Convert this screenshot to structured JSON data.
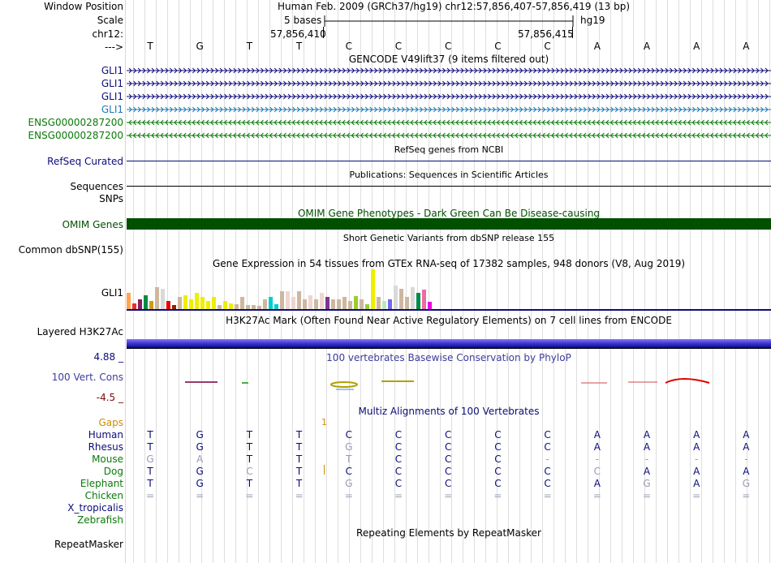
{
  "header": {
    "window_position_label": "Window Position",
    "window_position_value": "Human Feb. 2009 (GRCh37/hg19)   chr12:57,856,407-57,856,419 (13 bp)",
    "scale_label": "Scale",
    "scale_value": "5 bases",
    "scale_assembly": "hg19",
    "chrom_label": "chr12:",
    "coord_left": "57,856,410",
    "coord_right": "57,856,415",
    "strand_label": "--->"
  },
  "reference_bases": [
    "T",
    "G",
    "T",
    "T",
    "C",
    "C",
    "C",
    "C",
    "C",
    "A",
    "A",
    "A",
    "A"
  ],
  "gencode": {
    "title": "GENCODE V49lift37 (9 items filtered out)",
    "rows": [
      {
        "label": "GLI1",
        "strand": "+",
        "color": "#0c0c78"
      },
      {
        "label": "GLI1",
        "strand": "+",
        "color": "#0c0c78"
      },
      {
        "label": "GLI1",
        "strand": "+",
        "color": "#0c0c78"
      },
      {
        "label": "GLI1",
        "strand": "+",
        "color": "#1e78b4"
      },
      {
        "label": "ENSG00000287200",
        "strand": "-",
        "color": "#0a7a0a"
      },
      {
        "label": "ENSG00000287200",
        "strand": "-",
        "color": "#0a7a0a"
      }
    ]
  },
  "refseq": {
    "title": "RefSeq genes from NCBI",
    "label": "RefSeq Curated",
    "color": "#0c0c78"
  },
  "publications": {
    "title": "Publications: Sequences in Scientific Articles",
    "label": "Sequences"
  },
  "snps_label": "SNPs",
  "omim": {
    "title": "OMIM Gene Phenotypes - Dark Green Can Be Disease-causing",
    "label": "OMIM Genes",
    "color": "#005000"
  },
  "dbsnp": {
    "title": "Short Genetic Variants from dbSNP release 155",
    "label": "Common dbSNP(155)"
  },
  "gtex": {
    "title": "Gene Expression in 54 tissues from GTEx RNA-seq of 17382 samples, 948 donors (V8, Aug 2019)",
    "label": "GLI1",
    "values": [
      0.4,
      0.15,
      0.25,
      0.35,
      0.2,
      0.55,
      0.5,
      0.2,
      0.1,
      0.3,
      0.35,
      0.25,
      0.4,
      0.3,
      0.2,
      0.3,
      0.1,
      0.2,
      0.15,
      0.12,
      0.3,
      0.1,
      0.1,
      0.08,
      0.25,
      0.3,
      0.12,
      0.45,
      0.45,
      0.3,
      0.45,
      0.25,
      0.35,
      0.25,
      0.4,
      0.3,
      0.25,
      0.25,
      0.3,
      0.2,
      0.32,
      0.25,
      0.12,
      1.0,
      0.3,
      0.2,
      0.25,
      0.6,
      0.5,
      0.3,
      0.55,
      0.4,
      0.48,
      0.18
    ],
    "colors": [
      "#ffa54f",
      "#ee2c2c",
      "#8b1c62",
      "#008b45",
      "#cd9b1d",
      "#cdb79e",
      "#d9d9d9",
      "#ee0000",
      "#8b2500",
      "#cdb79e",
      "#eeee00",
      "#eeee00",
      "#eeee00",
      "#eeee00",
      "#eeee00",
      "#eeee00",
      "#cdb79e",
      "#eeee00",
      "#eeee00",
      "#cdb79e",
      "#cdb79e",
      "#cdb79e",
      "#cdb79e",
      "#cdb79e",
      "#cdb79e",
      "#00cdcd",
      "#00cdcd",
      "#cdb79e",
      "#eed5d2",
      "#eed5d2",
      "#cdb79e",
      "#cdb79e",
      "#eed5d2",
      "#cdb79e",
      "#eed5d2",
      "#7a378b",
      "#cdb79e",
      "#cdb79e",
      "#cdb79e",
      "#cdb79e",
      "#9acd32",
      "#cdb79e",
      "#9acd32",
      "#eeee00",
      "#cdb79e",
      "#b4eeb4",
      "#7a67ee",
      "#d9d9d9",
      "#cdb79e",
      "#cdb79e",
      "#d9d9d9",
      "#008b45",
      "#ee6aa7",
      "#ee00ee"
    ]
  },
  "h3k27ac": {
    "title": "H3K27Ac Mark (Often Found Near Active Regulatory Elements) on 7 cell lines from ENCODE",
    "label": "Layered H3K27Ac"
  },
  "phylop": {
    "title": "100 vertebrates Basewise Conservation by PhyloP",
    "label": "100 Vert. Cons",
    "max_label": "4.88 _",
    "min_label": "-4.5 _"
  },
  "multiz": {
    "title": "Multiz Alignments of 100 Vertebrates",
    "gaps_label": "Gaps",
    "gaps_marker": "1",
    "species": [
      {
        "name": "Human",
        "color": "#0c0c78",
        "bases": [
          "T",
          "G",
          "T",
          "T",
          "C",
          "C",
          "C",
          "C",
          "C",
          "A",
          "A",
          "A",
          "A"
        ]
      },
      {
        "name": "Rhesus",
        "color": "#0c0c78",
        "bases": [
          "T",
          "G",
          "T",
          "T",
          "G",
          "C",
          "C",
          "C",
          "C",
          "A",
          "A",
          "A",
          "A"
        ]
      },
      {
        "name": "Mouse",
        "color": "#0a7a0a",
        "bases": [
          "G",
          "A",
          "T",
          "T",
          "T",
          "C",
          "C",
          "C",
          "-",
          "-",
          "-",
          "-",
          "-"
        ]
      },
      {
        "name": "Dog",
        "color": "#0a7a0a",
        "bases": [
          "T",
          "G",
          "C",
          "T",
          "C",
          "C",
          "C",
          "C",
          "C",
          "C",
          "A",
          "A",
          "A"
        ]
      },
      {
        "name": "Elephant",
        "color": "#0a7a0a",
        "bases": [
          "T",
          "G",
          "T",
          "T",
          "G",
          "C",
          "C",
          "C",
          "C",
          "A",
          "G",
          "A",
          "G"
        ]
      },
      {
        "name": "Chicken",
        "color": "#0a7a0a",
        "bases": [
          "=",
          "=",
          "=",
          "=",
          "=",
          "=",
          "=",
          "=",
          "=",
          "=",
          "=",
          "=",
          "="
        ]
      },
      {
        "name": "X_tropicalis",
        "color": "#0c0c78",
        "bases": []
      },
      {
        "name": "Zebrafish",
        "color": "#0a7a0a",
        "bases": []
      }
    ]
  },
  "repeatmasker": {
    "title": "Repeating Elements by RepeatMasker",
    "label": "RepeatMasker"
  },
  "colors": {
    "navy": "#0c0c78",
    "green": "#0a7a0a",
    "gaps_orange": "#d08a00",
    "phylop_max": "#0c0c78",
    "phylop_min": "#780c0c"
  }
}
